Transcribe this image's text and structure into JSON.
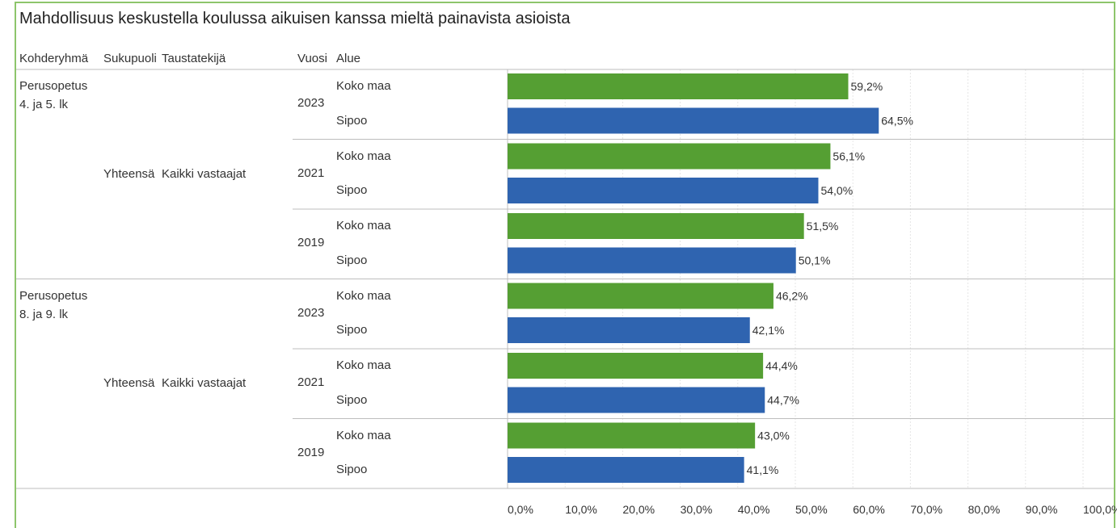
{
  "header": {
    "title": "Mahdollisuus keskustella koulussa aikuisen kanssa mieltä painavista asioista",
    "columns": {
      "kohderyhma": "Kohderyhmä",
      "sukupuoli": "Sukupuoli",
      "taustatekija": "Taustatekijä",
      "vuosi": "Vuosi",
      "alue": "Alue"
    }
  },
  "colors": {
    "koko_maa": "#559f33",
    "sipoo": "#2f64b0"
  },
  "chart_data": {
    "type": "bar",
    "orientation": "horizontal",
    "xlim": [
      0,
      100
    ],
    "x_ticks": [
      "0,0%",
      "10,0%",
      "20,0%",
      "30,0%",
      "40,0%",
      "50,0%",
      "60,0%",
      "70,0%",
      "80,0%",
      "90,0%",
      "100,0%"
    ],
    "groups": [
      {
        "kohderyhma": [
          "Perusopetus",
          "4. ja 5. lk"
        ],
        "sukupuoli": "Yhteensä",
        "taustatekija": "Kaikki vastaajat",
        "years": [
          {
            "year": "2023",
            "bars": [
              {
                "alue": "Koko maa",
                "value": 59.2,
                "label": "59,2%"
              },
              {
                "alue": "Sipoo",
                "value": 64.5,
                "label": "64,5%"
              }
            ]
          },
          {
            "year": "2021",
            "bars": [
              {
                "alue": "Koko maa",
                "value": 56.1,
                "label": "56,1%"
              },
              {
                "alue": "Sipoo",
                "value": 54.0,
                "label": "54,0%"
              }
            ]
          },
          {
            "year": "2019",
            "bars": [
              {
                "alue": "Koko maa",
                "value": 51.5,
                "label": "51,5%"
              },
              {
                "alue": "Sipoo",
                "value": 50.1,
                "label": "50,1%"
              }
            ]
          }
        ]
      },
      {
        "kohderyhma": [
          "Perusopetus",
          "8. ja 9. lk"
        ],
        "sukupuoli": "Yhteensä",
        "taustatekija": "Kaikki vastaajat",
        "years": [
          {
            "year": "2023",
            "bars": [
              {
                "alue": "Koko maa",
                "value": 46.2,
                "label": "46,2%"
              },
              {
                "alue": "Sipoo",
                "value": 42.1,
                "label": "42,1%"
              }
            ]
          },
          {
            "year": "2021",
            "bars": [
              {
                "alue": "Koko maa",
                "value": 44.4,
                "label": "44,4%"
              },
              {
                "alue": "Sipoo",
                "value": 44.7,
                "label": "44,7%"
              }
            ]
          },
          {
            "year": "2019",
            "bars": [
              {
                "alue": "Koko maa",
                "value": 43.0,
                "label": "43,0%"
              },
              {
                "alue": "Sipoo",
                "value": 41.1,
                "label": "41,1%"
              }
            ]
          }
        ]
      }
    ]
  }
}
